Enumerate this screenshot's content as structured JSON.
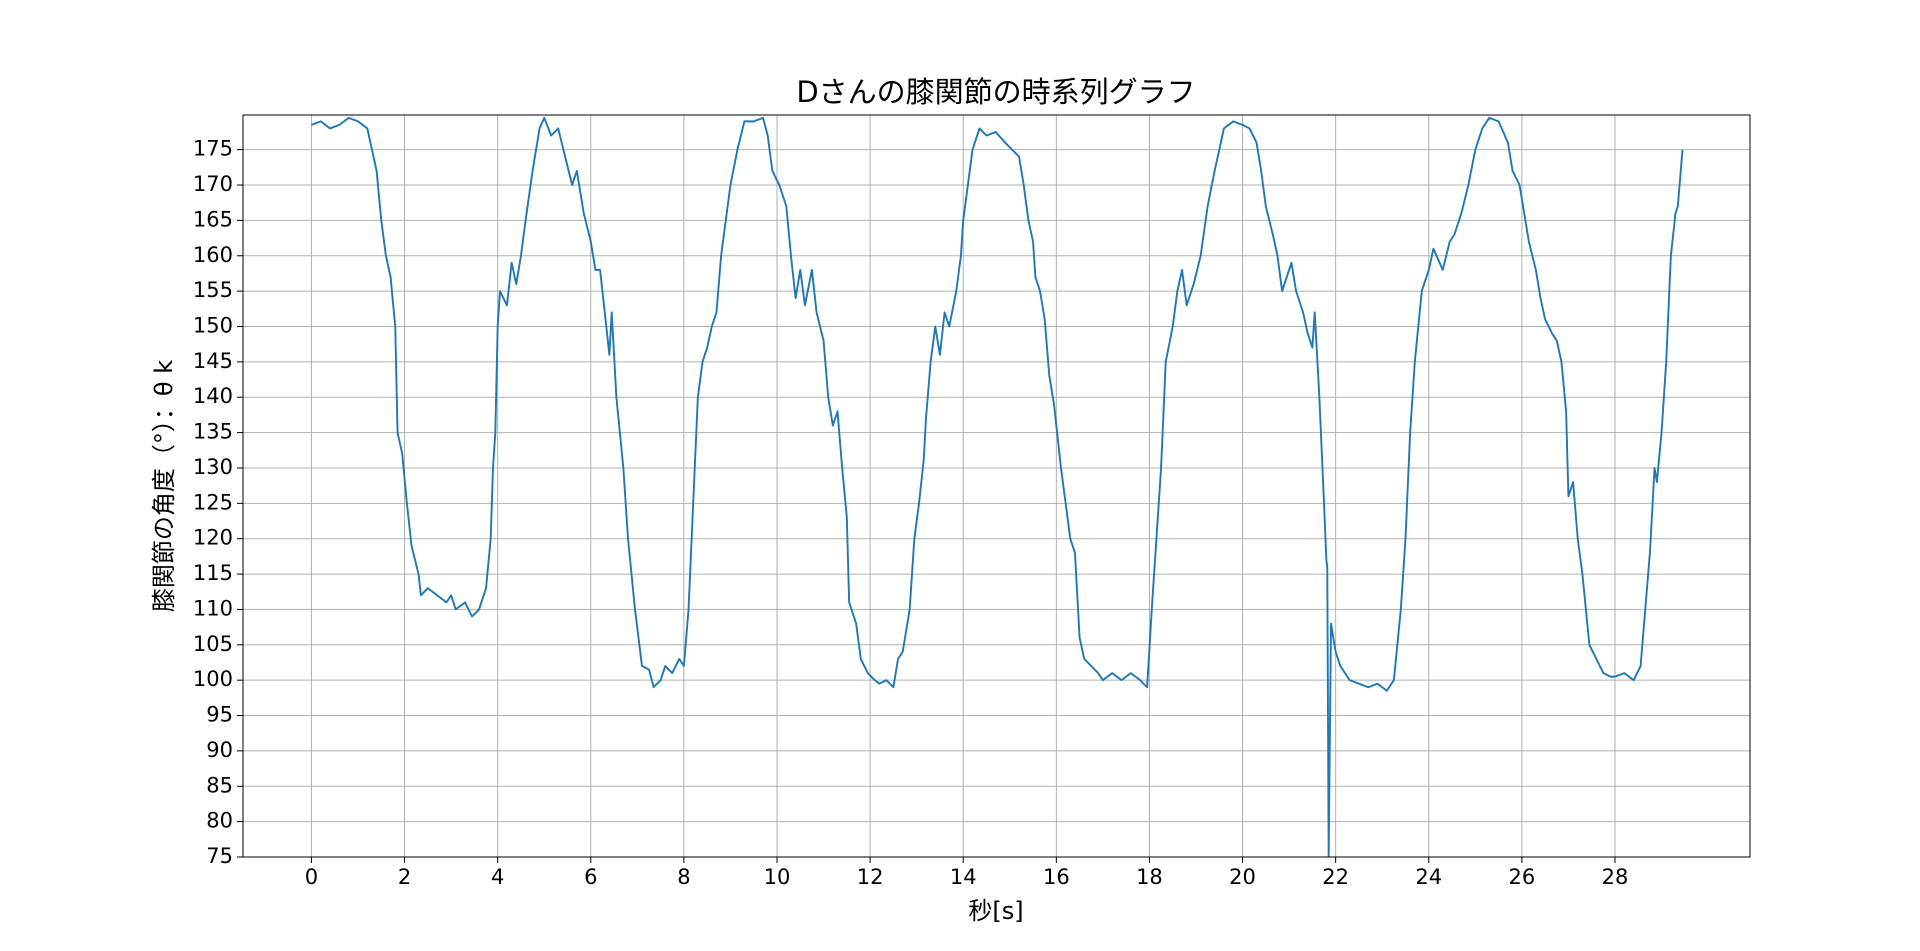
{
  "chart_data": {
    "type": "line",
    "title": "Dさんの膝関節の時系列グラフ",
    "x_label": "秒[s]",
    "y_label": "膝関節の角度（°）：θ k",
    "color": "#1f77b4",
    "grid": true,
    "xlim": [
      -1.47,
      30.9
    ],
    "ylim": [
      75,
      179.9
    ],
    "xticks": [
      0,
      2,
      4,
      6,
      8,
      10,
      12,
      14,
      16,
      18,
      20,
      22,
      24,
      26,
      28
    ],
    "yticks": [
      75,
      80,
      85,
      90,
      95,
      100,
      105,
      110,
      115,
      120,
      125,
      130,
      135,
      140,
      145,
      150,
      155,
      160,
      165,
      170,
      175
    ],
    "x": [
      0,
      0.2,
      0.4,
      0.6,
      0.8,
      1.0,
      1.2,
      1.3,
      1.4,
      1.5,
      1.6,
      1.7,
      1.8,
      1.85,
      1.95,
      2.05,
      2.15,
      2.3,
      2.35,
      2.5,
      2.7,
      2.9,
      3.0,
      3.1,
      3.3,
      3.45,
      3.6,
      3.75,
      3.85,
      3.9,
      3.95,
      4.0,
      4.05,
      4.2,
      4.3,
      4.4,
      4.5,
      4.6,
      4.75,
      4.9,
      5.0,
      5.15,
      5.3,
      5.45,
      5.6,
      5.7,
      5.85,
      6.0,
      6.1,
      6.2,
      6.3,
      6.4,
      6.45,
      6.55,
      6.7,
      6.8,
      6.95,
      7.1,
      7.25,
      7.35,
      7.5,
      7.6,
      7.75,
      7.9,
      8.0,
      8.1,
      8.2,
      8.3,
      8.4,
      8.5,
      8.6,
      8.7,
      8.8,
      8.9,
      9.0,
      9.15,
      9.3,
      9.5,
      9.7,
      9.8,
      9.9,
      10.05,
      10.2,
      10.3,
      10.4,
      10.5,
      10.6,
      10.75,
      10.85,
      11.0,
      11.1,
      11.2,
      11.3,
      11.4,
      11.5,
      11.55,
      11.7,
      11.8,
      11.95,
      12.1,
      12.2,
      12.35,
      12.5,
      12.6,
      12.7,
      12.85,
      12.95,
      13.05,
      13.15,
      13.2,
      13.3,
      13.4,
      13.5,
      13.6,
      13.7,
      13.85,
      13.95,
      14.0,
      14.1,
      14.2,
      14.35,
      14.5,
      14.7,
      14.9,
      15.05,
      15.2,
      15.3,
      15.4,
      15.5,
      15.55,
      15.65,
      15.75,
      15.85,
      15.95,
      16.1,
      16.2,
      16.3,
      16.4,
      16.5,
      16.6,
      16.75,
      16.9,
      17.0,
      17.2,
      17.4,
      17.6,
      17.8,
      17.95,
      18.05,
      18.15,
      18.25,
      18.35,
      18.5,
      18.6,
      18.7,
      18.8,
      18.95,
      19.1,
      19.25,
      19.4,
      19.6,
      19.8,
      20.0,
      20.15,
      20.3,
      20.4,
      20.5,
      20.65,
      20.75,
      20.85,
      20.95,
      21.05,
      21.15,
      21.3,
      21.4,
      21.5,
      21.55,
      21.65,
      21.75,
      21.8,
      21.82,
      21.85,
      21.9,
      22.0,
      22.1,
      22.3,
      22.5,
      22.7,
      22.9,
      23.0,
      23.1,
      23.25,
      23.4,
      23.5,
      23.6,
      23.7,
      23.85,
      24.0,
      24.1,
      24.3,
      24.45,
      24.55,
      24.7,
      24.85,
      25.0,
      25.15,
      25.3,
      25.5,
      25.7,
      25.8,
      25.95,
      26.05,
      26.15,
      26.3,
      26.4,
      26.5,
      26.65,
      26.75,
      26.85,
      26.95,
      27.0,
      27.1,
      27.2,
      27.3,
      27.45,
      27.6,
      27.75,
      27.9,
      28.0,
      28.2,
      28.4,
      28.55,
      28.65,
      28.75,
      28.85,
      28.9,
      29.0,
      29.1,
      29.2,
      29.3,
      29.35,
      29.45
    ],
    "values": [
      178.5,
      179,
      178,
      178.5,
      179.5,
      179,
      178,
      175,
      172,
      165,
      160,
      157,
      150,
      135,
      132,
      125,
      119,
      115,
      112,
      113,
      112,
      111,
      112,
      110,
      111,
      109,
      110,
      113,
      120,
      130,
      135,
      150,
      155,
      153,
      159,
      156,
      160,
      165,
      172,
      178,
      179.5,
      177,
      178,
      174,
      170,
      172,
      166,
      162,
      158,
      158,
      152,
      146,
      152,
      140,
      130,
      120,
      110,
      102,
      101.5,
      99,
      100,
      102,
      101,
      103,
      102,
      110,
      125,
      140,
      145,
      147,
      150,
      152,
      160,
      165,
      170,
      175,
      179,
      179,
      179.5,
      177,
      172,
      170,
      167,
      160,
      154,
      158,
      153,
      158,
      152,
      148,
      140,
      136,
      138,
      130,
      123,
      111,
      108,
      103,
      101,
      100,
      99.5,
      100,
      99,
      103,
      104,
      110,
      120,
      125,
      131,
      137,
      145,
      150,
      146,
      152,
      150,
      155,
      160,
      165,
      170,
      175,
      178,
      177,
      177.5,
      176,
      175,
      174,
      170,
      165,
      162,
      157,
      155,
      151,
      143,
      139,
      130,
      125,
      120,
      118,
      106,
      103,
      102,
      101,
      100,
      101,
      100,
      101,
      100,
      99,
      110,
      120,
      130,
      145,
      150,
      155,
      158,
      153,
      156,
      160,
      167,
      172,
      178,
      179,
      178.5,
      178,
      176,
      172,
      167,
      163,
      160,
      155,
      157,
      159,
      155,
      152,
      149,
      147,
      152,
      140,
      125,
      117,
      116,
      75,
      108,
      104,
      102,
      100,
      99.5,
      99,
      99.5,
      99,
      98.5,
      100,
      110,
      120,
      135,
      145,
      155,
      158,
      161,
      158,
      162,
      163,
      166,
      170,
      175,
      178,
      179.5,
      179,
      176,
      172,
      170,
      166,
      162,
      158,
      154,
      151,
      149,
      148,
      145,
      138,
      126,
      128,
      120,
      115,
      105,
      103,
      101,
      100.5,
      100.5,
      101,
      100,
      102,
      110,
      118,
      130,
      128,
      135,
      145,
      160,
      166,
      167,
      175
    ]
  }
}
